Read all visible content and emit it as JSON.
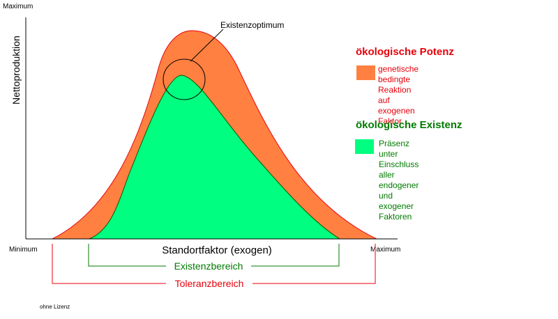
{
  "diagram": {
    "y_axis": {
      "label": "Nettoproduktion",
      "top_label": "Maximum"
    },
    "x_axis": {
      "label": "Standortfaktor (exogen)",
      "left_label": "Minimum",
      "right_label": "Maximum"
    },
    "optimum_label": "Existenzoptimum",
    "existence_range_label": "Existenzbereich",
    "tolerance_range_label": "Toleranzbereich",
    "footnote": "ohne Lizenz"
  },
  "legend": {
    "potenz": {
      "heading": "ökologische Potenz",
      "text": "genetische bedingte\nReaktion auf\nexogenen Faktor"
    },
    "existenz": {
      "heading": "ökologische Existenz",
      "text": "Präsenz unter Einschluss\naller endogener und\nexogener Faktoren"
    }
  },
  "colors": {
    "potenz_fill": "#ff8040",
    "existenz_fill": "#00ff80",
    "red": "#e8000b",
    "green": "#007a00",
    "axis": "#000000"
  }
}
